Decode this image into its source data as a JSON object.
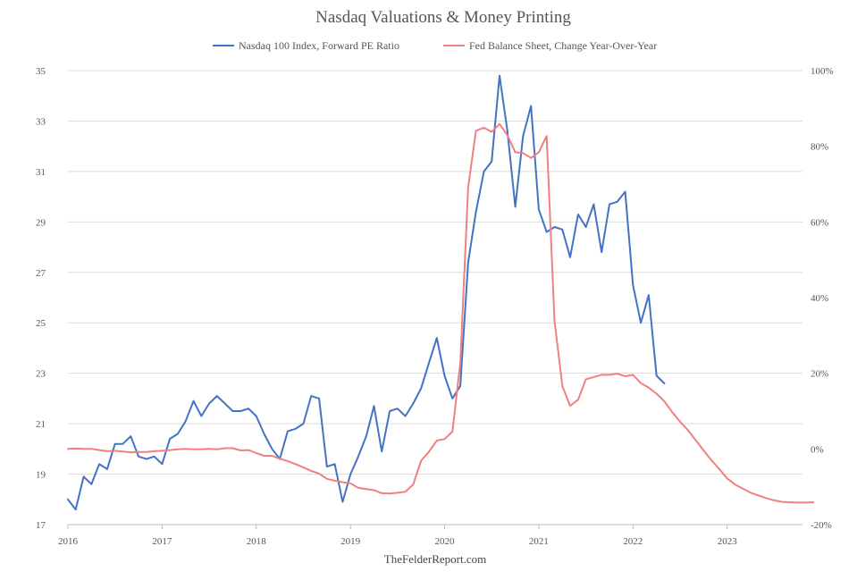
{
  "chart_data": {
    "type": "line",
    "title": "Nasdaq Valuations & Money Printing",
    "source": "TheFelderReport.com",
    "legend_position": "top",
    "grid": true,
    "xlabel": "",
    "xlim": [
      2016.0,
      2023.8
    ],
    "x_ticks": [
      2016,
      2017,
      2018,
      2019,
      2020,
      2021,
      2022,
      2023
    ],
    "x_tick_labels": [
      "2016",
      "2017",
      "2018",
      "2019",
      "2020",
      "2021",
      "2022",
      "2023"
    ],
    "y_left": {
      "label": "",
      "lim": [
        17,
        35
      ],
      "ticks": [
        17,
        19,
        21,
        23,
        25,
        27,
        29,
        31,
        33,
        35
      ],
      "tick_labels": [
        "17",
        "19",
        "21",
        "23",
        "25",
        "27",
        "29",
        "31",
        "33",
        "35"
      ]
    },
    "y_right": {
      "label": "",
      "lim": [
        -20,
        100
      ],
      "ticks": [
        -20,
        0,
        20,
        40,
        60,
        80,
        100
      ],
      "tick_labels": [
        "-20%",
        "0%",
        "20%",
        "40%",
        "60%",
        "80%",
        "100%"
      ]
    },
    "series": [
      {
        "name": "Nasdaq 100 Index, Forward PE Ratio",
        "axis": "left",
        "color": "#4472c4",
        "x": [
          2016.0,
          2016.083,
          2016.167,
          2016.25,
          2016.333,
          2016.417,
          2016.5,
          2016.583,
          2016.667,
          2016.75,
          2016.833,
          2016.917,
          2017.0,
          2017.083,
          2017.167,
          2017.25,
          2017.333,
          2017.417,
          2017.5,
          2017.583,
          2017.667,
          2017.75,
          2017.833,
          2017.917,
          2018.0,
          2018.083,
          2018.167,
          2018.25,
          2018.333,
          2018.417,
          2018.5,
          2018.583,
          2018.667,
          2018.75,
          2018.833,
          2018.917,
          2019.0,
          2019.083,
          2019.167,
          2019.25,
          2019.333,
          2019.417,
          2019.5,
          2019.583,
          2019.667,
          2019.75,
          2019.833,
          2019.917,
          2020.0,
          2020.083,
          2020.167,
          2020.25,
          2020.333,
          2020.417,
          2020.5,
          2020.583,
          2020.667,
          2020.75,
          2020.833,
          2020.917,
          2021.0,
          2021.083,
          2021.167,
          2021.25,
          2021.333,
          2021.417,
          2021.5,
          2021.583,
          2021.667,
          2021.75,
          2021.833,
          2021.917,
          2022.0,
          2022.083,
          2022.167,
          2022.25,
          2022.333
        ],
        "values": [
          18.0,
          17.6,
          18.9,
          18.6,
          19.4,
          19.2,
          20.2,
          20.2,
          20.5,
          19.7,
          19.6,
          19.7,
          19.4,
          20.4,
          20.6,
          21.1,
          21.9,
          21.3,
          21.8,
          22.1,
          21.8,
          21.5,
          21.5,
          21.6,
          21.3,
          20.6,
          20.0,
          19.6,
          20.7,
          20.8,
          21.0,
          22.1,
          22.0,
          19.3,
          19.4,
          17.9,
          19.0,
          19.7,
          20.5,
          21.7,
          19.9,
          21.5,
          21.6,
          21.3,
          21.8,
          22.4,
          23.4,
          24.4,
          22.9,
          22.0,
          22.5,
          27.4,
          29.4,
          31.0,
          31.4,
          34.8,
          32.6,
          29.6,
          32.4,
          33.6,
          29.5,
          28.6,
          28.8,
          28.7,
          27.6,
          29.3,
          28.8,
          29.7,
          27.8,
          29.7,
          29.8,
          30.2,
          26.5,
          25.0,
          26.1,
          22.9,
          22.6
        ]
      },
      {
        "name": "Fed Balance Sheet, Change Year-Over-Year",
        "axis": "right",
        "color": "#f08080",
        "x": [
          2016.0,
          2016.083,
          2016.167,
          2016.25,
          2016.333,
          2016.417,
          2016.5,
          2016.583,
          2016.667,
          2016.75,
          2016.833,
          2016.917,
          2017.0,
          2017.083,
          2017.167,
          2017.25,
          2017.333,
          2017.417,
          2017.5,
          2017.583,
          2017.667,
          2017.75,
          2017.833,
          2017.917,
          2018.0,
          2018.083,
          2018.167,
          2018.25,
          2018.333,
          2018.417,
          2018.5,
          2018.583,
          2018.667,
          2018.75,
          2018.833,
          2018.917,
          2019.0,
          2019.083,
          2019.167,
          2019.25,
          2019.333,
          2019.417,
          2019.5,
          2019.583,
          2019.667,
          2019.75,
          2019.833,
          2019.917,
          2020.0,
          2020.083,
          2020.167,
          2020.25,
          2020.333,
          2020.417,
          2020.5,
          2020.583,
          2020.667,
          2020.75,
          2020.833,
          2020.917,
          2021.0,
          2021.083,
          2021.167,
          2021.25,
          2021.333,
          2021.417,
          2021.5,
          2021.583,
          2021.667,
          2021.75,
          2021.833,
          2021.917,
          2022.0,
          2022.083,
          2022.167,
          2022.25,
          2022.333,
          2022.417,
          2022.5,
          2022.583,
          2022.667,
          2022.75,
          2022.833,
          2022.917,
          2023.0,
          2023.083,
          2023.167,
          2023.25,
          2023.333,
          2023.417,
          2023.5,
          2023.583,
          2023.667,
          2023.75,
          2023.833,
          2023.917
        ],
        "values": [
          0.0,
          0.1,
          0.0,
          0.0,
          -0.3,
          -0.6,
          -0.5,
          -0.7,
          -0.9,
          -0.8,
          -0.8,
          -0.6,
          -0.5,
          -0.3,
          -0.1,
          0.0,
          -0.1,
          -0.1,
          0.0,
          -0.1,
          0.2,
          0.2,
          -0.4,
          -0.3,
          -1.1,
          -1.8,
          -1.8,
          -2.6,
          -3.2,
          -4.0,
          -4.9,
          -5.8,
          -6.5,
          -7.9,
          -8.4,
          -8.8,
          -9.1,
          -10.3,
          -10.6,
          -10.9,
          -11.7,
          -11.8,
          -11.6,
          -11.3,
          -9.4,
          -3.1,
          -0.8,
          2.2,
          2.6,
          4.6,
          22.8,
          69.2,
          84.1,
          84.9,
          83.8,
          85.9,
          82.9,
          78.4,
          78.2,
          76.9,
          78.4,
          82.7,
          33.9,
          16.6,
          11.4,
          13.0,
          18.4,
          19.0,
          19.6,
          19.6,
          19.9,
          19.2,
          19.6,
          17.4,
          16.2,
          14.6,
          12.6,
          9.7,
          7.2,
          5.0,
          2.3,
          -0.4,
          -3.0,
          -5.3,
          -7.8,
          -9.4,
          -10.5,
          -11.6,
          -12.3,
          -13.0,
          -13.6,
          -14.0,
          -14.1,
          -14.2,
          -14.2,
          -14.1
        ]
      }
    ]
  }
}
